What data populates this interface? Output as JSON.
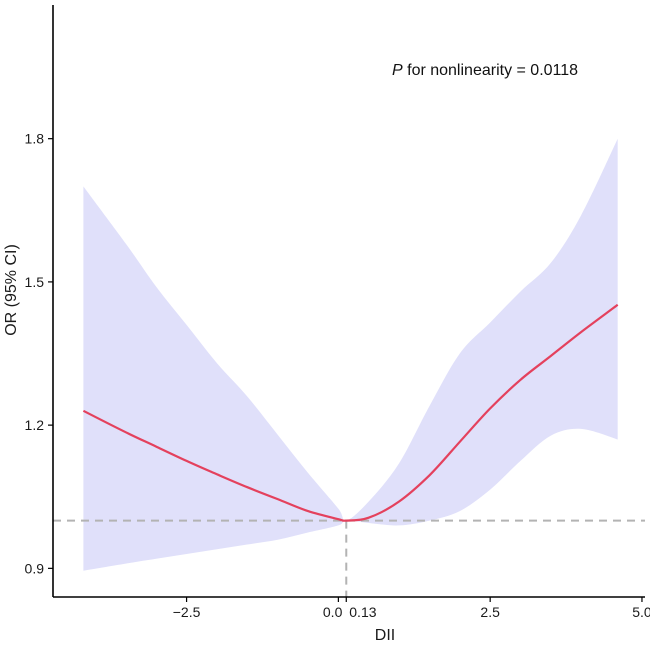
{
  "chart_data": {
    "type": "line",
    "xlabel": "DII",
    "ylabel": "OR (95% CI)",
    "xlim": [
      -4.7,
      5.05
    ],
    "ylim": [
      0.84,
      2.08
    ],
    "x_ticks": [
      {
        "value": -2.5,
        "label": "−2.5"
      },
      {
        "value": 0.0,
        "label": "0.0"
      },
      {
        "value": 0.13,
        "label": "0.13"
      },
      {
        "value": 2.5,
        "label": "2.5"
      },
      {
        "value": 5.0,
        "label": "5.0"
      }
    ],
    "y_ticks": [
      {
        "value": 0.9,
        "label": "0.9"
      },
      {
        "value": 1.2,
        "label": "1.2"
      },
      {
        "value": 1.5,
        "label": "1.5"
      },
      {
        "value": 1.8,
        "label": "1.8"
      }
    ],
    "reference_y": 1.0,
    "reference_x": 0.13,
    "annotation": {
      "italic": "P",
      "text": " for nonlinearity = 0.0118"
    },
    "series": [
      {
        "x": [
          -4.2,
          -3.5,
          -3.0,
          -2.5,
          -2.0,
          -1.5,
          -1.0,
          -0.5,
          0.0,
          0.13,
          0.5,
          1.0,
          1.5,
          2.0,
          2.5,
          3.0,
          3.5,
          4.0,
          4.6
        ],
        "values": [
          1.23,
          1.185,
          1.155,
          1.125,
          1.097,
          1.07,
          1.045,
          1.02,
          1.003,
          1.0,
          1.006,
          1.04,
          1.095,
          1.165,
          1.235,
          1.295,
          1.345,
          1.395,
          1.452
        ],
        "lower": [
          0.895,
          0.91,
          0.92,
          0.93,
          0.94,
          0.95,
          0.96,
          0.975,
          0.99,
          1.0,
          0.995,
          0.99,
          1.0,
          1.02,
          1.065,
          1.125,
          1.178,
          1.192,
          1.17
        ],
        "upper": [
          1.7,
          1.58,
          1.49,
          1.41,
          1.33,
          1.26,
          1.18,
          1.1,
          1.025,
          1.0,
          1.04,
          1.12,
          1.24,
          1.35,
          1.415,
          1.48,
          1.54,
          1.64,
          1.8
        ],
        "color": "#e4415d",
        "ci_color": "#e0e0fa"
      }
    ]
  }
}
